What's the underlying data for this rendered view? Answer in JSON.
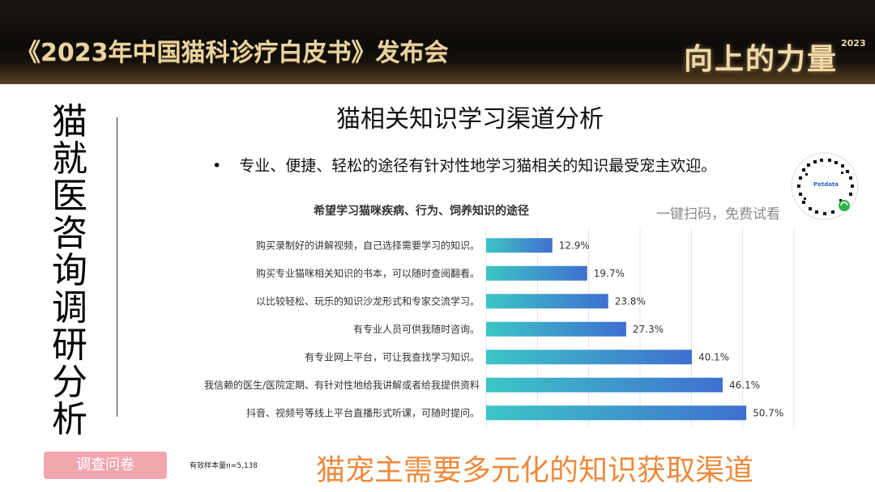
{
  "banner": {
    "title": "《2023年中国猫科诊疗白皮书》发布会",
    "logo": "向上的力量",
    "year": "2023"
  },
  "side_title": "猫就医咨询调研分析",
  "page_title": "猫相关知识学习渠道分析",
  "bullet": {
    "symbol": "•",
    "text": "专业、便捷、轻松的途径有针对性地学习猫相关的知识最受宠主欢迎。"
  },
  "qr": {
    "brand": "Petdata",
    "scan_text": "一键扫码，免费试看"
  },
  "chart_data": {
    "type": "bar",
    "orientation": "horizontal",
    "title": "希望学习猫咪疾病、行为、饲养知识的途径",
    "categories": [
      "购买录制好的讲解视频，自己选择需要学习的知识。",
      "购买专业猫咪相关知识的书本，可以随时查阅翻看。",
      "以比较轻松、玩乐的知识沙龙形式和专家交流学习。",
      "有专业人员可供我随时咨询。",
      "有专业网上平台，可让我查找学习知识。",
      "我信赖的医生/医院定期、有针对性地给我讲解或者给我提供资料",
      "抖音、视频号等线上平台直播形式听课，可随时提问。"
    ],
    "values": [
      12.9,
      19.7,
      23.8,
      27.3,
      40.1,
      46.1,
      50.7
    ],
    "value_labels": [
      "12.9%",
      "19.7%",
      "23.8%",
      "27.3%",
      "40.1%",
      "46.1%",
      "50.7%"
    ],
    "xlim": [
      0,
      60
    ],
    "grid": true,
    "colors": {
      "bar_start": "#3cc6c6",
      "bar_end": "#3f6fd0"
    }
  },
  "footer": {
    "survey_label": "调查问卷",
    "sample_note": "有效样本量n=5,138",
    "conclusion": "猫宠主需要多元化的知识获取渠道"
  }
}
